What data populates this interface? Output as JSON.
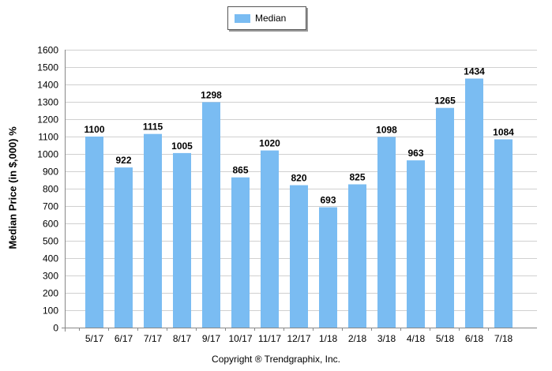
{
  "chart_data": {
    "type": "bar",
    "categories": [
      "5/17",
      "6/17",
      "7/17",
      "8/17",
      "9/17",
      "10/17",
      "11/17",
      "12/17",
      "1/18",
      "2/18",
      "3/18",
      "4/18",
      "5/18",
      "6/18",
      "7/18"
    ],
    "series": [
      {
        "name": "Median",
        "values": [
          1100,
          922,
          1115,
          1005,
          1298,
          865,
          1020,
          820,
          693,
          825,
          1098,
          963,
          1265,
          1434,
          1084
        ]
      }
    ],
    "title": "",
    "xlabel": "",
    "ylabel": "Median Price (in $,000) %",
    "ylim": [
      0,
      1600
    ],
    "yticks": [
      0,
      100,
      200,
      300,
      400,
      500,
      600,
      700,
      800,
      900,
      1000,
      1100,
      1200,
      1300,
      1400,
      1500,
      1600
    ],
    "grid": true,
    "legend": "top-center",
    "data_labels": true
  },
  "colors": {
    "bar": "#7abcf2",
    "grid": "#d0d0d0",
    "axis": "#888888"
  },
  "legend": {
    "label": "Median"
  },
  "footer": {
    "copyright": "Copyright ® Trendgraphix, Inc."
  }
}
